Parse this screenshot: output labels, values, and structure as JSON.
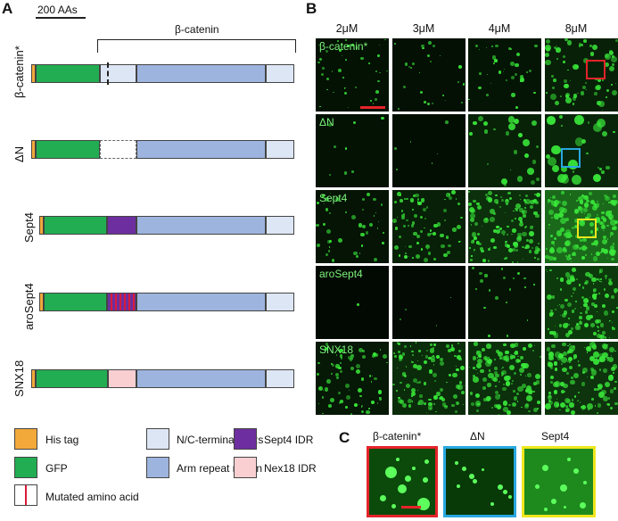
{
  "panels": {
    "a": "A",
    "b": "B",
    "c": "C"
  },
  "scale_bar_label": "200 AAs",
  "bracket_label": "β-catenin",
  "constructs": [
    {
      "label": "β-catenin*"
    },
    {
      "label": "ΔN"
    },
    {
      "label": "Sept4"
    },
    {
      "label": "aroSept4"
    },
    {
      "label": "SNX18"
    }
  ],
  "legend": [
    {
      "label": "His tag",
      "color": "#f2a93a"
    },
    {
      "label": "GFP",
      "color": "#22ad52"
    },
    {
      "label": "Mutated amino acid",
      "color": "#ffffff"
    },
    {
      "label": "N/C-terminal IDRs",
      "color": "#dde6f5"
    },
    {
      "label": "Arm repeat region",
      "color": "#9db4de"
    },
    {
      "label": "Sept4 IDR",
      "color": "#6d2f9f"
    },
    {
      "label": "Nex18 IDR",
      "color": "#f9cfd1"
    }
  ],
  "concentrations": [
    "2μM",
    "3μM",
    "4μM",
    "8μM"
  ],
  "micrograph_rows": [
    "β-catenin*",
    "ΔN",
    "Sept4",
    "aroSept4",
    "SNX18"
  ],
  "zoom_labels": [
    "β-catenin*",
    "ΔN",
    "Sept4"
  ],
  "colors": {
    "box_red": "#e5232a",
    "box_blue": "#29a8e0",
    "box_yellow": "#f0e61e",
    "scale_red": "#e5232a"
  }
}
